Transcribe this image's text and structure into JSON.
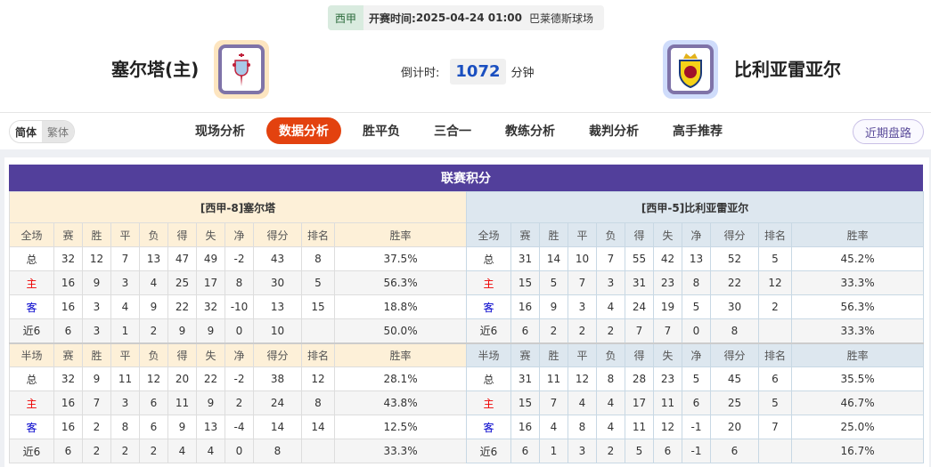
{
  "match": {
    "league": "西甲",
    "time_label": "开赛时间:",
    "time": "2025-04-24 01:00",
    "venue": "巴莱德斯球场"
  },
  "home": {
    "name": "塞尔塔(主)"
  },
  "away": {
    "name": "比利亚雷亚尔"
  },
  "countdown": {
    "label": "倒计时:",
    "value": "1072",
    "unit": "分钟"
  },
  "lang": {
    "simplified": "简体",
    "traditional": "繁体"
  },
  "nav": {
    "items": [
      "现场分析",
      "数据分析",
      "胜平负",
      "三合一",
      "教练分析",
      "裁判分析",
      "高手推荐"
    ],
    "active": "数据分析",
    "recent": "近期盘路"
  },
  "standings": {
    "title": "联赛积分",
    "columns_full": [
      "全场",
      "赛",
      "胜",
      "平",
      "负",
      "得",
      "失",
      "净",
      "得分",
      "排名",
      "胜率"
    ],
    "columns_half": [
      "半场",
      "赛",
      "胜",
      "平",
      "负",
      "得",
      "失",
      "净",
      "得分",
      "排名",
      "胜率"
    ],
    "home": {
      "team": "[西甲-8]塞尔塔",
      "full": [
        [
          "总",
          "32",
          "12",
          "7",
          "13",
          "47",
          "49",
          "-2",
          "43",
          "8",
          "37.5%"
        ],
        [
          "主",
          "16",
          "9",
          "3",
          "4",
          "25",
          "17",
          "8",
          "30",
          "5",
          "56.3%"
        ],
        [
          "客",
          "16",
          "3",
          "4",
          "9",
          "22",
          "32",
          "-10",
          "13",
          "15",
          "18.8%"
        ],
        [
          "近6",
          "6",
          "3",
          "1",
          "2",
          "9",
          "9",
          "0",
          "10",
          "",
          "50.0%"
        ]
      ],
      "half": [
        [
          "总",
          "32",
          "9",
          "11",
          "12",
          "20",
          "22",
          "-2",
          "38",
          "12",
          "28.1%"
        ],
        [
          "主",
          "16",
          "7",
          "3",
          "6",
          "11",
          "9",
          "2",
          "24",
          "8",
          "43.8%"
        ],
        [
          "客",
          "16",
          "2",
          "8",
          "6",
          "9",
          "13",
          "-4",
          "14",
          "14",
          "12.5%"
        ],
        [
          "近6",
          "6",
          "2",
          "2",
          "2",
          "4",
          "4",
          "0",
          "8",
          "",
          "33.3%"
        ]
      ]
    },
    "away": {
      "team": "[西甲-5]比利亚雷亚尔",
      "full": [
        [
          "总",
          "31",
          "14",
          "10",
          "7",
          "55",
          "42",
          "13",
          "52",
          "5",
          "45.2%"
        ],
        [
          "主",
          "15",
          "5",
          "7",
          "3",
          "31",
          "23",
          "8",
          "22",
          "12",
          "33.3%"
        ],
        [
          "客",
          "16",
          "9",
          "3",
          "4",
          "24",
          "19",
          "5",
          "30",
          "2",
          "56.3%"
        ],
        [
          "近6",
          "6",
          "2",
          "2",
          "2",
          "7",
          "7",
          "0",
          "8",
          "",
          "33.3%"
        ]
      ],
      "half": [
        [
          "总",
          "31",
          "11",
          "12",
          "8",
          "28",
          "23",
          "5",
          "45",
          "6",
          "35.5%"
        ],
        [
          "主",
          "15",
          "7",
          "4",
          "4",
          "17",
          "11",
          "6",
          "25",
          "5",
          "46.7%"
        ],
        [
          "客",
          "16",
          "4",
          "8",
          "4",
          "11",
          "12",
          "-1",
          "20",
          "7",
          "25.0%"
        ],
        [
          "近6",
          "6",
          "1",
          "3",
          "2",
          "5",
          "6",
          "-1",
          "6",
          "",
          "16.7%"
        ]
      ]
    }
  },
  "colors": {
    "accent": "#e3420f",
    "title_bar": "#523f9b",
    "home_row": "#e00000",
    "away_row": "#0000cc"
  }
}
